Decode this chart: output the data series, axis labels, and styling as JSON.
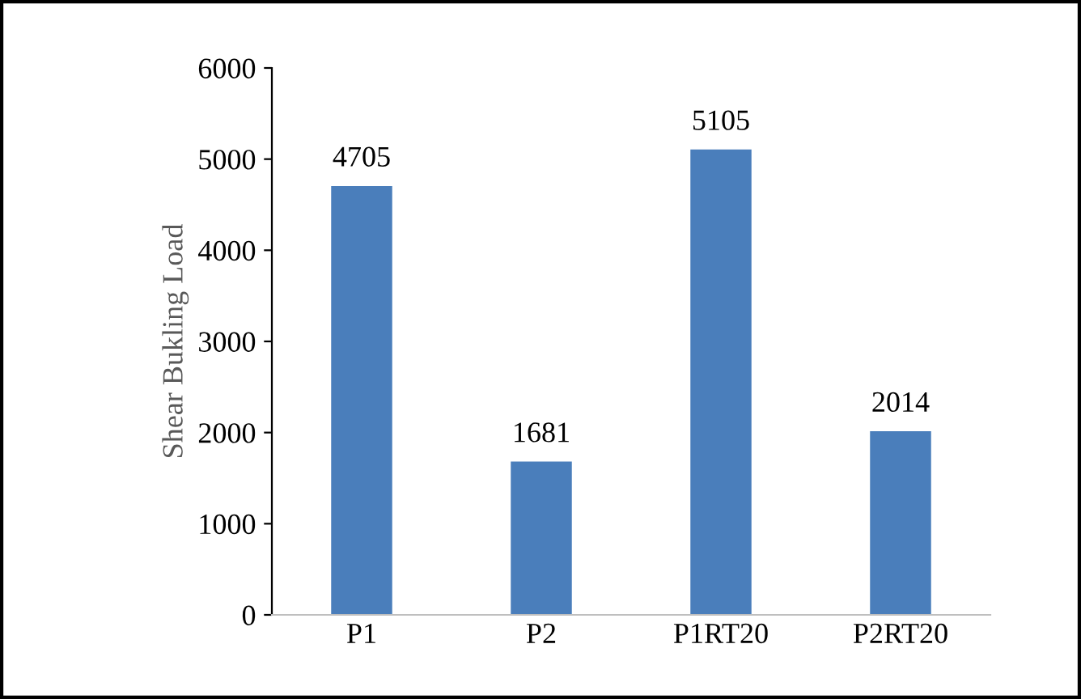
{
  "chart_data": {
    "type": "bar",
    "ylabel": "Shear Bukling Load",
    "categories": [
      "P1",
      "P2",
      "P1RT20",
      "P2RT20"
    ],
    "values": [
      4705,
      1681,
      5105,
      2014
    ],
    "color": "#4a7ebb",
    "ylim": [
      0,
      6000
    ],
    "yticks": [
      0,
      1000,
      2000,
      3000,
      4000,
      5000,
      6000
    ],
    "grid": false,
    "legend": false,
    "data_labels": true
  }
}
